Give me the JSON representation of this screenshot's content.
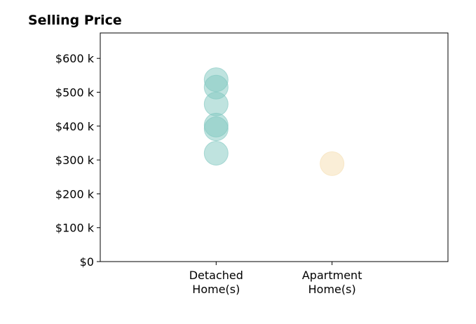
{
  "chart_data": {
    "type": "scatter",
    "title": "Selling Price",
    "xlabel": "",
    "ylabel": "",
    "categories": [
      [
        "Detached",
        "Home(s)"
      ],
      [
        "Apartment",
        "Home(s)"
      ]
    ],
    "xlim": [
      -1,
      2
    ],
    "ylim": [
      0,
      675000
    ],
    "yticks": [
      0,
      100000,
      200000,
      300000,
      400000,
      500000,
      600000
    ],
    "ytick_labels": [
      "$0",
      "$100 k",
      "$200 k",
      "$300 k",
      "$400 k",
      "$500 k",
      "$600 k"
    ],
    "grid": false,
    "legend": "none",
    "series": [
      {
        "category_index": 0,
        "color": "#7fc7bf",
        "values": [
          537000,
          515000,
          465000,
          403000,
          392000,
          320000
        ]
      },
      {
        "category_index": 1,
        "color": "#f5deb0",
        "values": [
          289000
        ]
      }
    ]
  }
}
